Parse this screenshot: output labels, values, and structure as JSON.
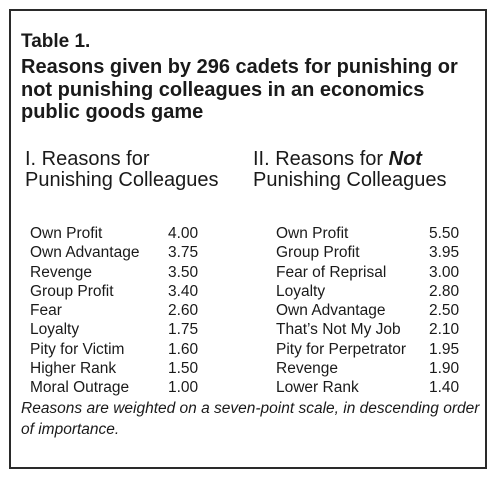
{
  "table": {
    "label": "Table 1.",
    "title": "Reasons given by 296 cadets for punishing or not punishing colleagues in an economics public goods game",
    "left": {
      "heading_pre": "I. Reasons for Punishing Colleagues",
      "rows": [
        {
          "reason": "Own Profit",
          "value": "4.00"
        },
        {
          "reason": "Own Advantage",
          "value": "3.75"
        },
        {
          "reason": "Revenge",
          "value": "3.50"
        },
        {
          "reason": "Group Profit",
          "value": "3.40"
        },
        {
          "reason": "Fear",
          "value": "2.60"
        },
        {
          "reason": "Loyalty",
          "value": "1.75"
        },
        {
          "reason": "Pity for Victim",
          "value": "1.60"
        },
        {
          "reason": "Higher Rank",
          "value": "1.50"
        },
        {
          "reason": "Moral Outrage",
          "value": "1.00"
        }
      ]
    },
    "right": {
      "heading_pre": "II. Reasons for",
      "heading_emph": "Not",
      "heading_post": "Punishing Colleagues",
      "rows": [
        {
          "reason": "Own Profit",
          "value": "5.50"
        },
        {
          "reason": "Group Profit",
          "value": "3.95"
        },
        {
          "reason": "Fear of Reprisal",
          "value": "3.00"
        },
        {
          "reason": "Loyalty",
          "value": "2.80"
        },
        {
          "reason": "Own Advantage",
          "value": "2.50"
        },
        {
          "reason": "That’s Not My Job",
          "value": "2.10"
        },
        {
          "reason": "Pity for Perpetrator",
          "value": "1.95"
        },
        {
          "reason": "Revenge",
          "value": "1.90"
        },
        {
          "reason": "Lower Rank",
          "value": "1.40"
        }
      ]
    },
    "footnote": "Reasons are weighted on a seven-point scale, in descending order of importance."
  }
}
